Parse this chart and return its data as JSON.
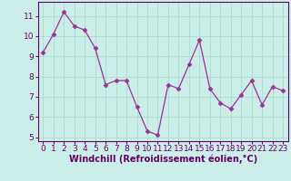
{
  "x": [
    0,
    1,
    2,
    3,
    4,
    5,
    6,
    7,
    8,
    9,
    10,
    11,
    12,
    13,
    14,
    15,
    16,
    17,
    18,
    19,
    20,
    21,
    22,
    23
  ],
  "y": [
    9.2,
    10.1,
    11.2,
    10.5,
    10.3,
    9.4,
    7.6,
    7.8,
    7.8,
    6.5,
    5.3,
    5.1,
    7.6,
    7.4,
    8.6,
    9.8,
    7.4,
    6.7,
    6.4,
    7.1,
    7.8,
    6.6,
    7.5,
    7.3
  ],
  "line_color": "#993399",
  "marker": "D",
  "marker_size": 2.5,
  "bg_color": "#cceee8",
  "grid_color": "#aaddcc",
  "xlabel": "Windchill (Refroidissement éolien,°C)",
  "ylim": [
    4.8,
    11.7
  ],
  "xlim": [
    -0.5,
    23.5
  ],
  "yticks": [
    5,
    6,
    7,
    8,
    9,
    10,
    11
  ],
  "xticks": [
    0,
    1,
    2,
    3,
    4,
    5,
    6,
    7,
    8,
    9,
    10,
    11,
    12,
    13,
    14,
    15,
    16,
    17,
    18,
    19,
    20,
    21,
    22,
    23
  ],
  "label_color": "#660066",
  "tick_color": "#660066",
  "spine_color": "#660066",
  "font_size": 6.5,
  "xlabel_fontsize": 7
}
